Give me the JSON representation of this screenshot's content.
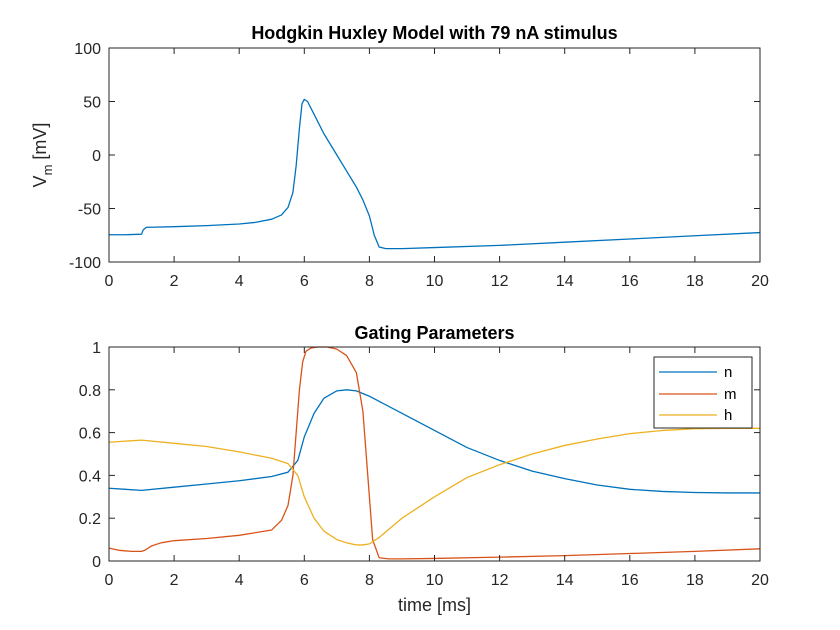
{
  "chart_data": [
    {
      "type": "line",
      "title": "Hodgkin Huxley Model with 79 nA stimulus",
      "ylabel_main": "V",
      "ylabel_sub": "m",
      "ylabel_unit": " [mV]",
      "xlim": [
        0,
        20
      ],
      "ylim": [
        -100,
        100
      ],
      "xticks": [
        0,
        2,
        4,
        6,
        8,
        10,
        12,
        14,
        16,
        18,
        20
      ],
      "yticks": [
        -100,
        -50,
        0,
        50,
        100
      ],
      "grid": false,
      "series": [
        {
          "color": "#0072BD",
          "x": [
            0,
            0.5,
            1.0,
            1.05,
            1.15,
            1.3,
            2,
            3,
            4,
            4.5,
            5,
            5.3,
            5.5,
            5.65,
            5.75,
            5.85,
            5.93,
            6.0,
            6.1,
            6.3,
            6.6,
            7.0,
            7.3,
            7.6,
            7.8,
            8.0,
            8.15,
            8.3,
            8.5,
            9,
            10,
            12,
            14,
            16,
            18,
            20
          ],
          "y": [
            -74.5,
            -74.5,
            -74,
            -70,
            -67.5,
            -67.5,
            -67,
            -66,
            -64.5,
            -63,
            -60,
            -56,
            -49,
            -35,
            -10,
            25,
            48,
            52,
            50,
            38,
            20,
            0,
            -15,
            -30,
            -42,
            -57,
            -75,
            -86,
            -87.5,
            -87.5,
            -86.5,
            -84.5,
            -81.5,
            -78.5,
            -75.5,
            -72.5
          ]
        }
      ]
    },
    {
      "type": "line",
      "title": "Gating Parameters",
      "xlabel": "time [ms]",
      "xlim": [
        0,
        20
      ],
      "ylim": [
        0,
        1
      ],
      "xticks": [
        0,
        2,
        4,
        6,
        8,
        10,
        12,
        14,
        16,
        18,
        20
      ],
      "yticks": [
        0,
        0.2,
        0.4,
        0.6,
        0.8,
        1
      ],
      "grid": false,
      "legend_position": "top-right",
      "series": [
        {
          "name": "n",
          "color": "#0072BD",
          "x": [
            0,
            0.5,
            1.0,
            2,
            3,
            4,
            5,
            5.5,
            5.8,
            6.0,
            6.3,
            6.6,
            7.0,
            7.3,
            7.6,
            8.0,
            9,
            10,
            11,
            12,
            13,
            14,
            15,
            16,
            17,
            18,
            19,
            20
          ],
          "y": [
            0.34,
            0.335,
            0.33,
            0.345,
            0.36,
            0.375,
            0.395,
            0.415,
            0.47,
            0.58,
            0.69,
            0.76,
            0.795,
            0.8,
            0.795,
            0.77,
            0.69,
            0.61,
            0.53,
            0.47,
            0.42,
            0.385,
            0.355,
            0.335,
            0.325,
            0.32,
            0.318,
            0.318
          ]
        },
        {
          "name": "m",
          "color": "#D95319",
          "x": [
            0,
            0.3,
            0.7,
            1.0,
            1.1,
            1.3,
            1.6,
            2,
            3,
            4,
            5,
            5.3,
            5.5,
            5.65,
            5.75,
            5.85,
            5.95,
            6.05,
            6.2,
            6.4,
            6.7,
            7.0,
            7.3,
            7.6,
            7.8,
            7.95,
            8.1,
            8.3,
            8.6,
            9,
            10,
            12,
            14,
            16,
            18,
            20
          ],
          "y": [
            0.06,
            0.05,
            0.045,
            0.045,
            0.05,
            0.07,
            0.085,
            0.095,
            0.105,
            0.12,
            0.145,
            0.19,
            0.26,
            0.4,
            0.6,
            0.8,
            0.93,
            0.98,
            0.995,
            1.0,
            1.0,
            0.99,
            0.96,
            0.88,
            0.7,
            0.4,
            0.1,
            0.015,
            0.01,
            0.01,
            0.012,
            0.018,
            0.025,
            0.035,
            0.045,
            0.057
          ]
        },
        {
          "name": "h",
          "color": "#EDB120",
          "x": [
            0,
            0.5,
            1.0,
            2,
            3,
            4,
            5,
            5.5,
            5.8,
            6.0,
            6.3,
            6.6,
            7.0,
            7.3,
            7.6,
            7.8,
            8.0,
            8.3,
            9,
            10,
            11,
            12,
            13,
            14,
            15,
            16,
            17,
            18,
            19,
            20
          ],
          "y": [
            0.555,
            0.56,
            0.565,
            0.55,
            0.535,
            0.51,
            0.48,
            0.455,
            0.4,
            0.3,
            0.2,
            0.14,
            0.1,
            0.085,
            0.075,
            0.075,
            0.08,
            0.11,
            0.2,
            0.3,
            0.39,
            0.45,
            0.5,
            0.54,
            0.57,
            0.595,
            0.61,
            0.618,
            0.62,
            0.62
          ]
        }
      ]
    }
  ]
}
